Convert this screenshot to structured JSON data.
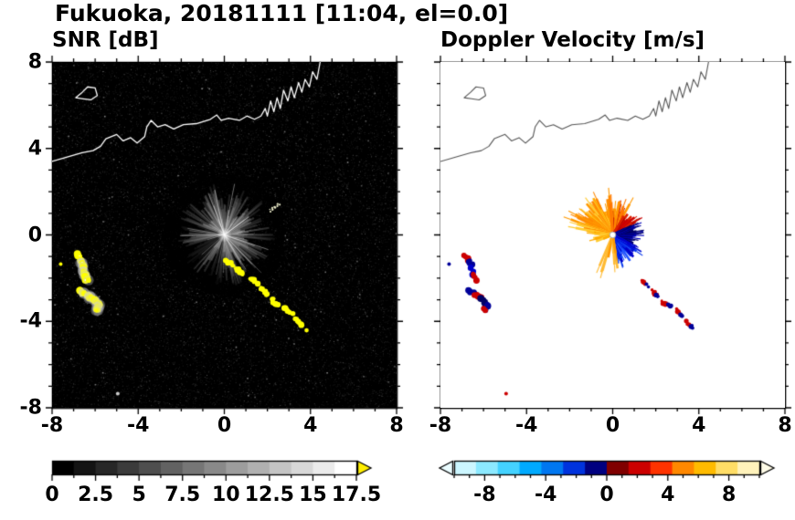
{
  "title": "Fukuoka, 20181111 [11:04, el=0.0]",
  "chart_data": [
    {
      "type": "heatmap",
      "title": "SNR [dB]",
      "units": "dB",
      "xlabel": "",
      "ylabel": "",
      "xlim": [
        -8,
        8
      ],
      "ylim": [
        -8,
        8
      ],
      "xticks": [
        -8,
        -4,
        0,
        4,
        8
      ],
      "xtick_labels": [
        "-8",
        "-4",
        "0",
        "4",
        "8"
      ],
      "yticks": [
        -8,
        -4,
        0,
        4,
        8
      ],
      "ytick_labels": [
        "-8",
        "-4",
        "0",
        "4",
        "8"
      ],
      "minor_tick_step": 1,
      "background_color": "#000000",
      "radar_center": [
        0,
        0
      ],
      "clutter_fan": {
        "max_radius": 2.5,
        "dark_sectors": [
          [
            160,
            176
          ],
          [
            197,
            228
          ],
          [
            250,
            262
          ]
        ],
        "bright_rays": 22
      },
      "echoes": [
        {
          "name": "echo-west-north",
          "color": "#ffff00",
          "width": 0.3,
          "fringe": true,
          "path": [
            [
              -6.85,
              -0.9
            ],
            [
              -6.6,
              -1.35
            ],
            [
              -6.5,
              -1.75
            ],
            [
              -6.35,
              -2.15
            ]
          ]
        },
        {
          "name": "echo-west-south",
          "color": "#ffff00",
          "width": 0.32,
          "fringe": true,
          "path": [
            [
              -6.7,
              -2.6
            ],
            [
              -6.35,
              -2.8
            ],
            [
              -6.05,
              -3.0
            ],
            [
              -5.8,
              -3.3
            ],
            [
              -6.0,
              -3.55
            ]
          ]
        },
        {
          "name": "echo-southeast-arc",
          "color": "#ffff00",
          "width": 0.24,
          "dashed": true,
          "path": [
            [
              0.05,
              -1.15
            ],
            [
              0.5,
              -1.5
            ],
            [
              0.95,
              -1.85
            ],
            [
              1.35,
              -2.1
            ],
            [
              1.75,
              -2.5
            ],
            [
              2.1,
              -2.85
            ],
            [
              2.35,
              -3.15
            ],
            [
              2.75,
              -3.35
            ],
            [
              3.1,
              -3.6
            ],
            [
              3.35,
              -3.95
            ],
            [
              3.6,
              -4.2
            ],
            [
              3.85,
              -4.45
            ]
          ]
        },
        {
          "name": "echo-northeast-streak",
          "color": "#eeeecc",
          "width": 0.09,
          "path": [
            [
              2.1,
              1.1
            ],
            [
              2.6,
              1.45
            ]
          ]
        },
        {
          "name": "echo-west-speck",
          "color": "#ffff00",
          "width": 0.12,
          "path": [
            [
              -7.6,
              -1.35
            ]
          ]
        },
        {
          "name": "echo-south-dot",
          "color": "#cccccc",
          "width": 0.16,
          "path": [
            [
              -4.95,
              -7.35
            ]
          ]
        }
      ],
      "colorbar": {
        "range": [
          0,
          17.5
        ],
        "ticks": [
          0,
          2.5,
          5,
          7.5,
          10,
          12.5,
          15,
          17.5
        ],
        "tick_labels": [
          "0",
          "2.5",
          "5",
          "7.5",
          "10",
          "12.5",
          "15",
          "17.5"
        ],
        "minor_tick_step": 1.25,
        "colors": [
          "#000000",
          "#141414",
          "#272727",
          "#3b3b3b",
          "#4e4e4e",
          "#626262",
          "#767676",
          "#898989",
          "#9d9d9d",
          "#b0b0b0",
          "#c4c4c4",
          "#d8d8d8",
          "#ebebeb",
          "#ffffff"
        ],
        "over_arrow_color": "#ffee00"
      }
    },
    {
      "type": "heatmap",
      "title": "Doppler Velocity [m/s]",
      "units": "m/s",
      "xlabel": "",
      "ylabel": "",
      "xlim": [
        -8,
        8
      ],
      "ylim": [
        -8,
        8
      ],
      "xticks": [
        -8,
        -4,
        0,
        4,
        8
      ],
      "xtick_labels": [
        "-8",
        "-4",
        "0",
        "4",
        "8"
      ],
      "yticks": [
        -8,
        -4,
        0,
        4,
        8
      ],
      "minor_tick_step": 1,
      "background_color": "#ffffff",
      "radar_center": [
        0,
        0
      ],
      "velocity_fan": [
        {
          "angle_start": 95,
          "angle_end": 170,
          "colors": [
            "#ff8800",
            "#ff9900",
            "#ffaa00",
            "#ffcc33"
          ],
          "r_min": 0.6,
          "r_max": 2.1,
          "density": 1.0
        },
        {
          "angle_start": 60,
          "angle_end": 95,
          "colors": [
            "#ff7700",
            "#ff9900",
            "#cc2200"
          ],
          "r_min": 0.5,
          "r_max": 1.7,
          "density": 1.0
        },
        {
          "angle_start": 28,
          "angle_end": 60,
          "colors": [
            "#cc0000",
            "#aa0000",
            "#dd2200"
          ],
          "r_min": 0.35,
          "r_max": 1.35,
          "density": 0.85
        },
        {
          "angle_start": -25,
          "angle_end": 28,
          "colors": [
            "#000066",
            "#000099",
            "#0000bb"
          ],
          "r_min": 0.3,
          "r_max": 1.15,
          "density": 1.0
        },
        {
          "angle_start": -85,
          "angle_end": -25,
          "colors": [
            "#0000cc",
            "#0033ee",
            "#2255ff"
          ],
          "r_min": 0.3,
          "r_max": 1.45,
          "density": 1.0
        },
        {
          "angle_start": 170,
          "angle_end": 205,
          "colors": [
            "#ffcc33",
            "#ffaa00"
          ],
          "r_min": 0.3,
          "r_max": 0.95,
          "density": 0.7
        },
        {
          "angle_start": 235,
          "angle_end": 285,
          "colors": [
            "#ff9900",
            "#ffbb33"
          ],
          "r_min": 0.7,
          "r_max": 2.0,
          "density": 0.3
        }
      ],
      "echoes": [
        {
          "name": "echo-west-north",
          "colors": [
            "#cc0000",
            "#000099",
            "#0000cc"
          ],
          "width": 0.26,
          "path": [
            [
              -6.85,
              -0.9
            ],
            [
              -6.6,
              -1.35
            ],
            [
              -6.5,
              -1.75
            ],
            [
              -6.35,
              -2.15
            ]
          ]
        },
        {
          "name": "echo-west-south",
          "colors": [
            "#000099",
            "#cc0000",
            "#000066"
          ],
          "width": 0.28,
          "path": [
            [
              -6.7,
              -2.6
            ],
            [
              -6.35,
              -2.8
            ],
            [
              -6.05,
              -3.0
            ],
            [
              -5.8,
              -3.3
            ],
            [
              -6.0,
              -3.55
            ]
          ]
        },
        {
          "name": "echo-southeast-arc",
          "colors": [
            "#cc0000",
            "#000099"
          ],
          "width": 0.2,
          "dashed": true,
          "path": [
            [
              1.35,
              -2.1
            ],
            [
              1.75,
              -2.5
            ],
            [
              2.1,
              -2.85
            ],
            [
              2.35,
              -3.15
            ],
            [
              2.75,
              -3.35
            ],
            [
              3.1,
              -3.6
            ],
            [
              3.35,
              -3.95
            ],
            [
              3.6,
              -4.2
            ],
            [
              3.85,
              -4.45
            ]
          ]
        },
        {
          "name": "echo-west-speck",
          "colors": [
            "#000099"
          ],
          "width": 0.1,
          "path": [
            [
              -7.6,
              -1.35
            ]
          ]
        },
        {
          "name": "echo-south-dot",
          "colors": [
            "#cc0000"
          ],
          "width": 0.12,
          "path": [
            [
              -4.95,
              -7.35
            ]
          ]
        }
      ],
      "colorbar": {
        "range": [
          -10,
          10
        ],
        "ticks": [
          -8,
          -4,
          0,
          4,
          8
        ],
        "tick_labels": [
          "-8",
          "-4",
          "0",
          "4",
          "8"
        ],
        "minor_tick_step": 1,
        "colors": [
          "#ccf6ff",
          "#8ce9ff",
          "#44d2ff",
          "#00aaff",
          "#0077f0",
          "#0033dd",
          "#000080",
          "#800000",
          "#cc0000",
          "#ff3300",
          "#ff8800",
          "#ffbb00",
          "#ffdd66",
          "#fff2bb"
        ],
        "under_arrow_color": "#eafcff",
        "over_arrow_color": "#fffce8"
      }
    }
  ],
  "coastline": {
    "main": [
      [
        -8.0,
        3.4
      ],
      [
        -7.3,
        3.6
      ],
      [
        -6.6,
        3.8
      ],
      [
        -6.1,
        3.9
      ],
      [
        -5.75,
        4.1
      ],
      [
        -5.5,
        4.45
      ],
      [
        -5.0,
        4.65
      ],
      [
        -4.7,
        4.35
      ],
      [
        -4.35,
        4.5
      ],
      [
        -4.05,
        4.25
      ],
      [
        -3.7,
        4.55
      ],
      [
        -3.6,
        5.0
      ],
      [
        -3.4,
        5.3
      ],
      [
        -3.1,
        5.0
      ],
      [
        -2.75,
        5.1
      ],
      [
        -2.35,
        4.9
      ],
      [
        -1.9,
        5.1
      ],
      [
        -1.3,
        5.15
      ],
      [
        -0.65,
        5.35
      ],
      [
        -0.35,
        5.55
      ],
      [
        -0.15,
        5.3
      ],
      [
        0.2,
        5.4
      ],
      [
        0.7,
        5.3
      ],
      [
        1.05,
        5.5
      ],
      [
        1.4,
        5.35
      ],
      [
        1.7,
        5.5
      ],
      [
        1.9,
        5.85
      ],
      [
        2.0,
        5.5
      ],
      [
        2.15,
        6.2
      ],
      [
        2.3,
        5.7
      ],
      [
        2.45,
        6.35
      ],
      [
        2.6,
        5.85
      ],
      [
        2.75,
        6.7
      ],
      [
        2.95,
        6.2
      ],
      [
        3.1,
        6.85
      ],
      [
        3.25,
        6.35
      ],
      [
        3.45,
        7.05
      ],
      [
        3.6,
        6.6
      ],
      [
        3.75,
        7.2
      ],
      [
        3.95,
        6.85
      ],
      [
        4.1,
        7.55
      ],
      [
        4.3,
        7.2
      ],
      [
        4.45,
        8.0
      ]
    ],
    "island": [
      [
        -6.9,
        6.35
      ],
      [
        -6.6,
        6.6
      ],
      [
        -6.35,
        6.85
      ],
      [
        -6.0,
        6.8
      ],
      [
        -5.9,
        6.45
      ],
      [
        -6.2,
        6.25
      ],
      [
        -6.55,
        6.3
      ]
    ]
  }
}
